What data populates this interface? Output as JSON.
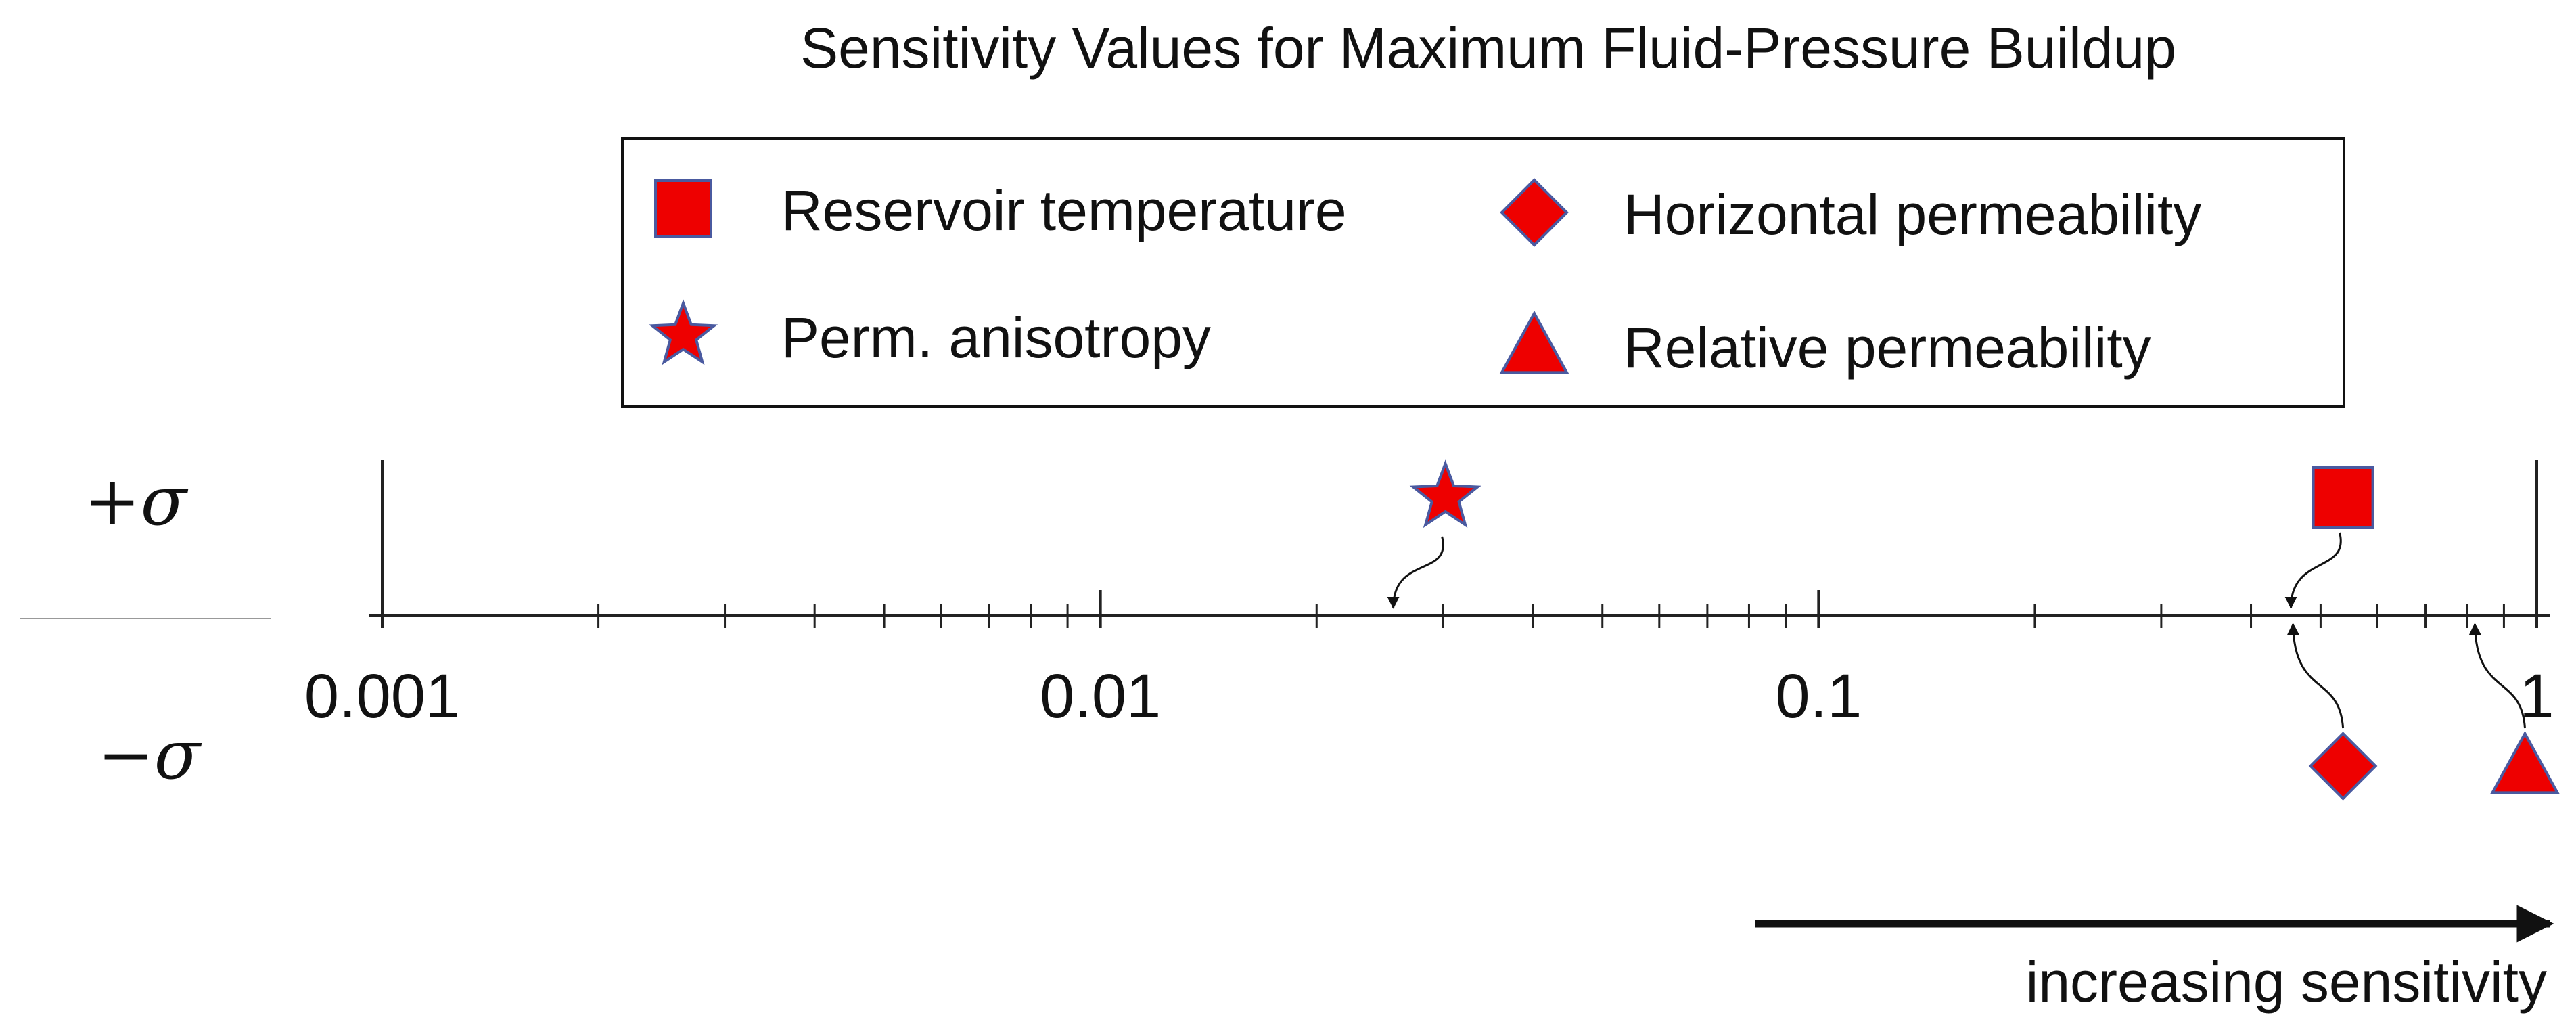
{
  "chart_data": {
    "type": "scatter",
    "title": "Sensitivity Values for Maximum Fluid-Pressure Buildup",
    "x_scale": "log",
    "xlim": [
      0.001,
      1
    ],
    "x_ticks": [
      {
        "value": 0.001,
        "label": "0.001"
      },
      {
        "value": 0.01,
        "label": "0.01"
      },
      {
        "value": 0.1,
        "label": "0.1"
      },
      {
        "value": 1,
        "label": "1"
      }
    ],
    "rows": {
      "plus": "+σ",
      "minus": "−σ"
    },
    "legend_position": "top-center",
    "marker_color": "#ee0000",
    "marker_edge_color": "#4a5aa0",
    "series": [
      {
        "name": "Reservoir temperature",
        "marker": "square",
        "side": "plus",
        "x": 0.48
      },
      {
        "name": "Horizontal permeability",
        "marker": "diamond",
        "side": "minus",
        "x": 0.48
      },
      {
        "name": "Perm. anisotropy",
        "marker": "star",
        "side": "plus",
        "x": 0.027
      },
      {
        "name": "Relative permeability",
        "marker": "triangle",
        "side": "minus",
        "x": 0.86
      }
    ],
    "annotation": "increasing sensitivity"
  }
}
